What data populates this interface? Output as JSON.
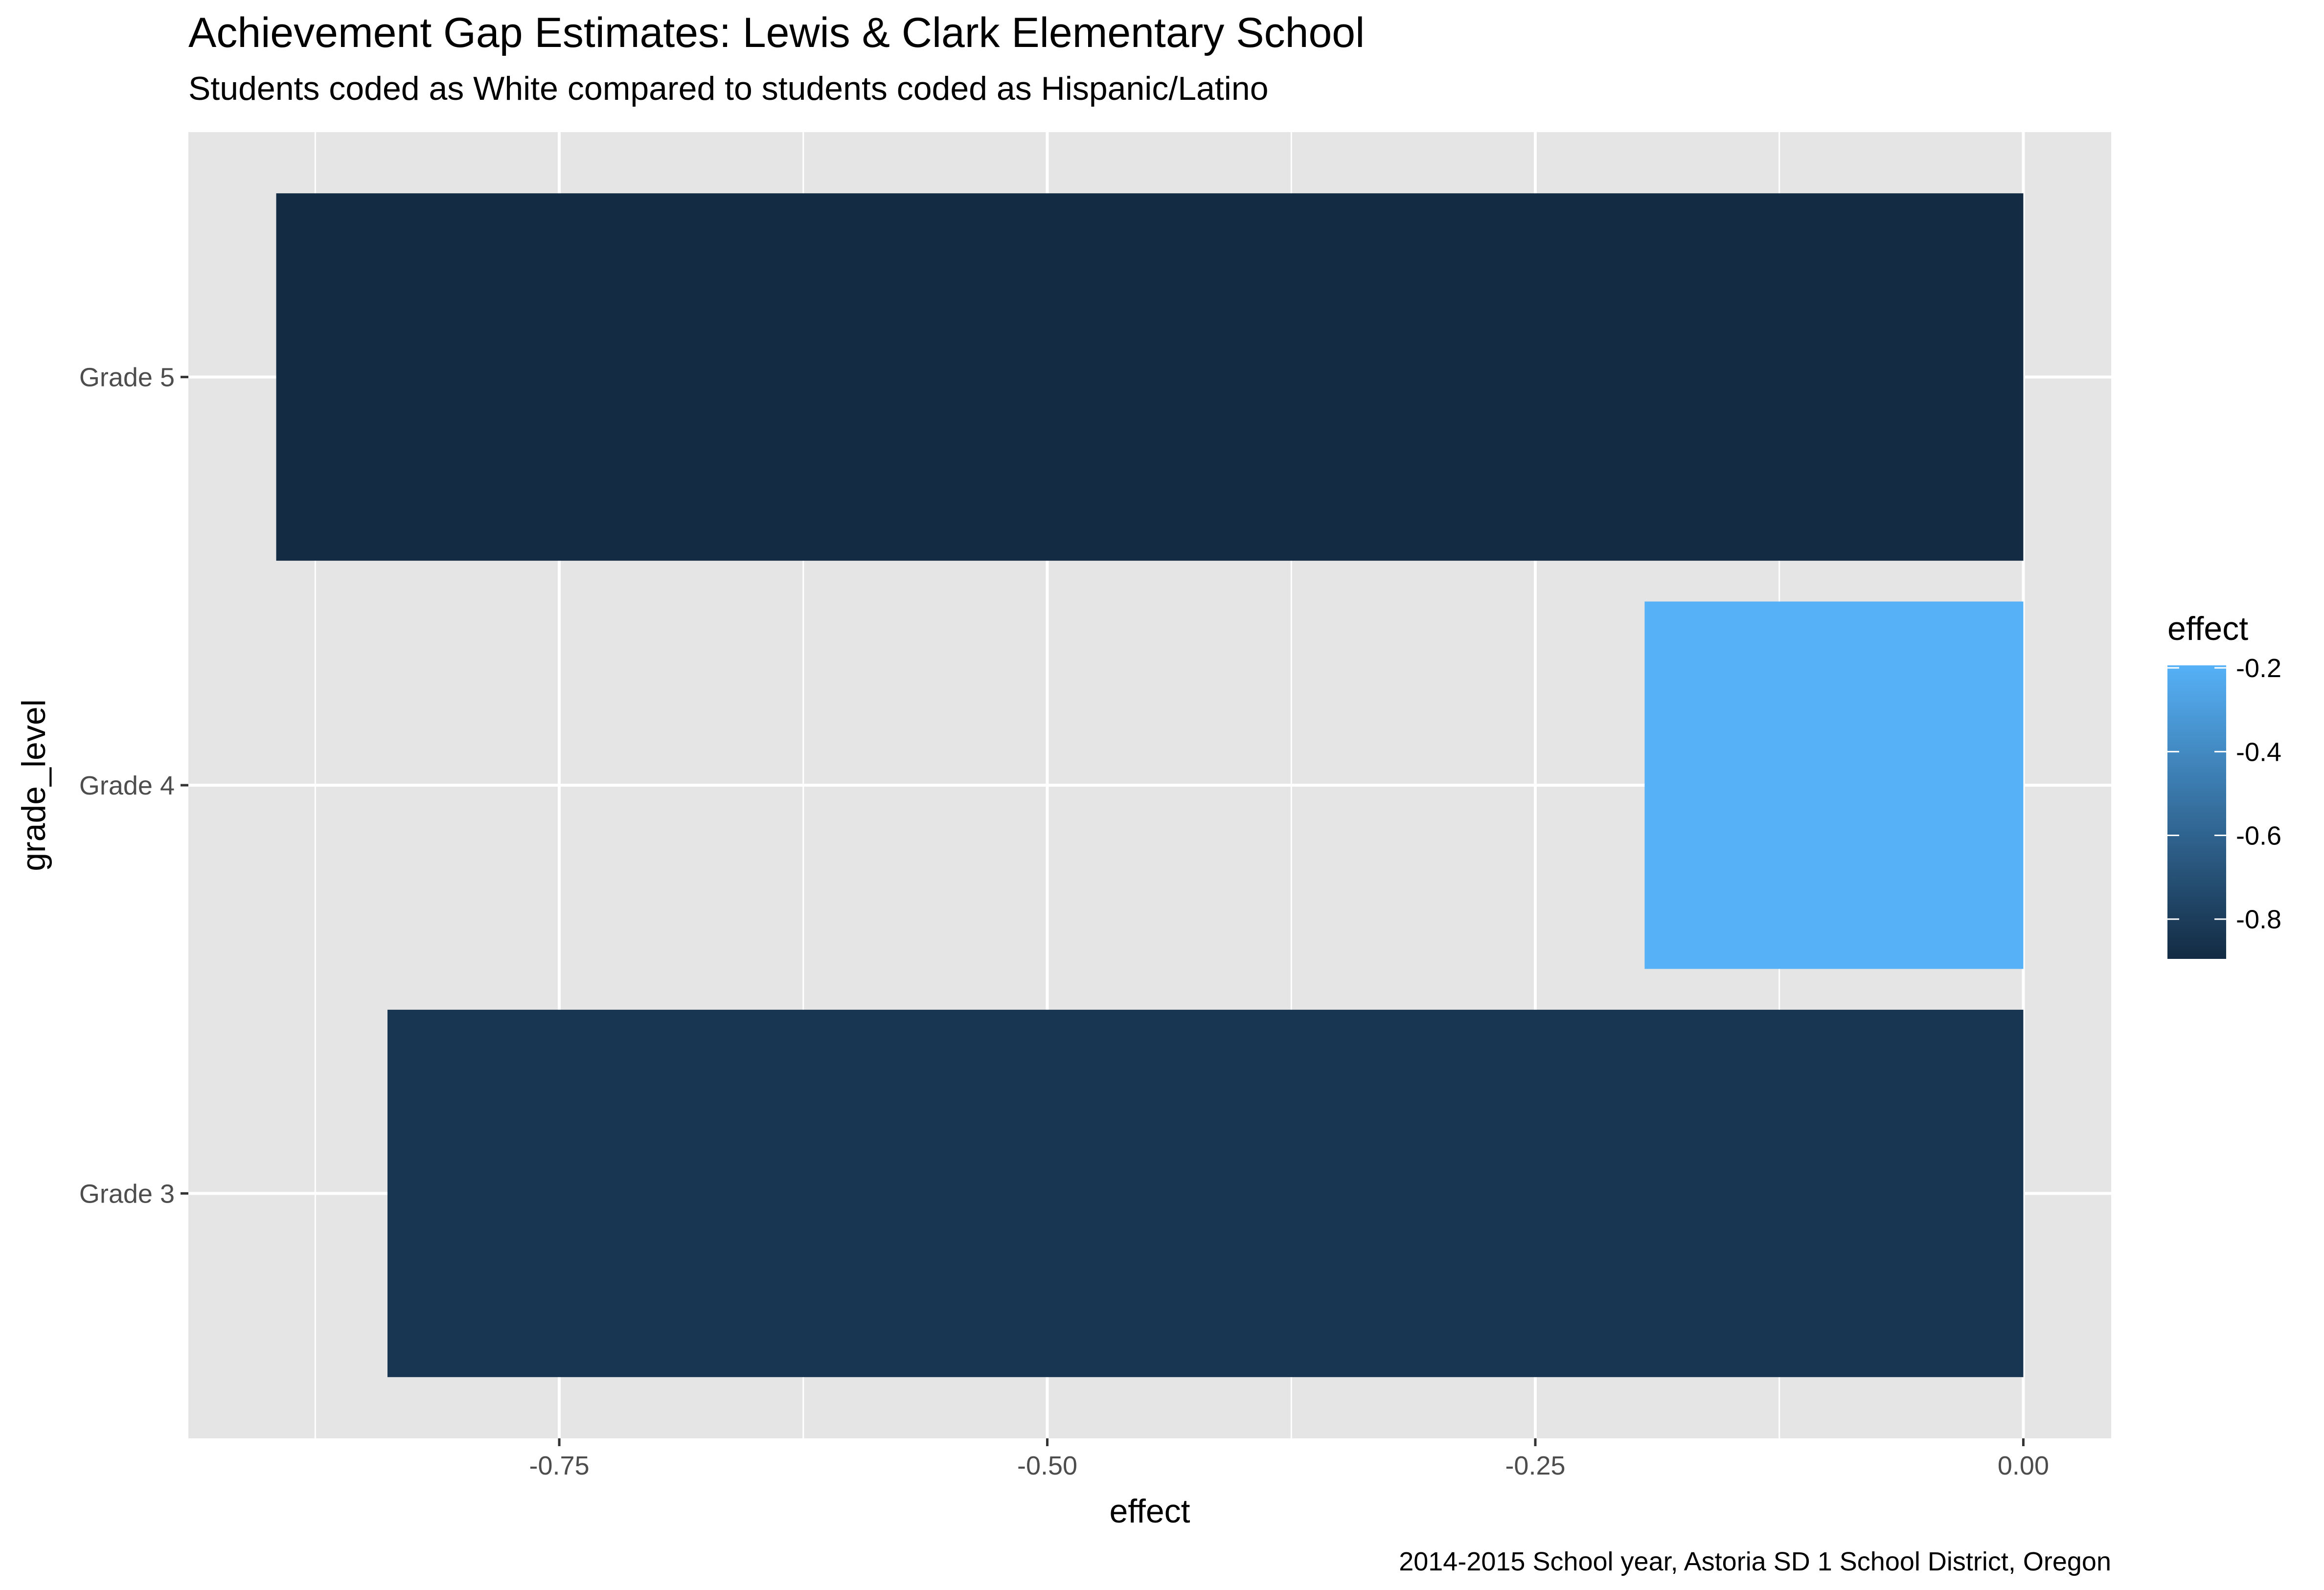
{
  "chart_data": {
    "type": "bar",
    "orientation": "horizontal",
    "title": "Achievement Gap Estimates: Lewis & Clark Elementary School",
    "subtitle": "Students coded as White compared to students coded as Hispanic/Latino",
    "caption": "2014-2015 School year, Astoria SD 1 School District, Oregon",
    "xlabel": "effect",
    "ylabel": "grade_level",
    "categories": [
      "Grade 3",
      "Grade 4",
      "Grade 5"
    ],
    "values": [
      -0.838,
      -0.194,
      -0.895
    ],
    "xlim": [
      -0.94,
      0.045
    ],
    "x_ticks": [
      -0.75,
      -0.5,
      -0.25,
      0.0
    ],
    "x_tick_labels": [
      "-0.75",
      "-0.50",
      "-0.25",
      "0.00"
    ],
    "x_minor_ticks": [
      -0.875,
      -0.625,
      -0.375,
      -0.125
    ],
    "grid": true,
    "panel_background": "#E5E5E5",
    "grid_color": "#FFFFFF",
    "legend": {
      "title": "effect",
      "placement": "right",
      "type": "colorbar",
      "limits": [
        -0.895,
        -0.194
      ],
      "breaks": [
        -0.8,
        -0.6,
        -0.4,
        -0.2
      ],
      "break_labels": [
        "-0.8",
        "-0.6",
        "-0.4",
        "-0.2"
      ],
      "low_color": "#132B43",
      "high_color": "#56B1F7"
    }
  }
}
